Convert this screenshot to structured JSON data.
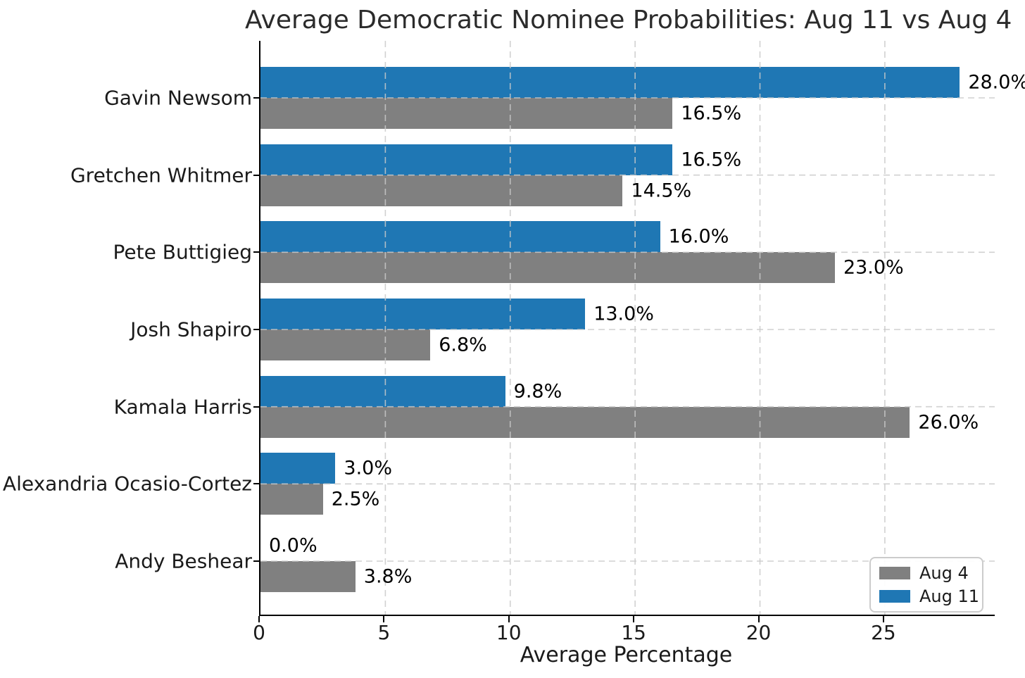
{
  "chart_data": {
    "type": "bar",
    "orientation": "horizontal",
    "title": "Average Democratic Nominee Probabilities: Aug 11 vs Aug 4",
    "xlabel": "Average Percentage",
    "categories": [
      "Gavin Newsom",
      "Gretchen Whitmer",
      "Pete Buttigieg",
      "Josh Shapiro",
      "Kamala Harris",
      "Alexandria Ocasio-Cortez",
      "Andy Beshear"
    ],
    "series": [
      {
        "name": "Aug 4",
        "color": "#808080",
        "values": [
          16.5,
          14.5,
          23.0,
          6.8,
          26.0,
          2.5,
          3.8
        ]
      },
      {
        "name": "Aug 11",
        "color": "#1f77b4",
        "values": [
          28.0,
          16.5,
          16.0,
          13.0,
          9.8,
          3.0,
          0.0
        ]
      }
    ],
    "bar_order_top_to_bottom": [
      "Aug 11",
      "Aug 4"
    ],
    "value_labels": {
      "Aug 11": [
        "28.0%",
        "16.5%",
        "16.0%",
        "13.0%",
        "9.8%",
        "3.0%",
        "0.0%"
      ],
      "Aug 4": [
        "16.5%",
        "14.5%",
        "23.0%",
        "6.8%",
        "26.0%",
        "2.5%",
        "3.8%"
      ]
    },
    "xlim": [
      0,
      29.4
    ],
    "xticks": [
      "0",
      "5",
      "10",
      "15",
      "20",
      "25"
    ],
    "grid": true,
    "grid_style": "dashed",
    "legend_position": "lower right",
    "colors": {
      "aug4": "#808080",
      "aug11": "#1f77b4",
      "grid": "#c9c9c9",
      "axis": "#000000",
      "text": "#1a1a1a"
    }
  }
}
